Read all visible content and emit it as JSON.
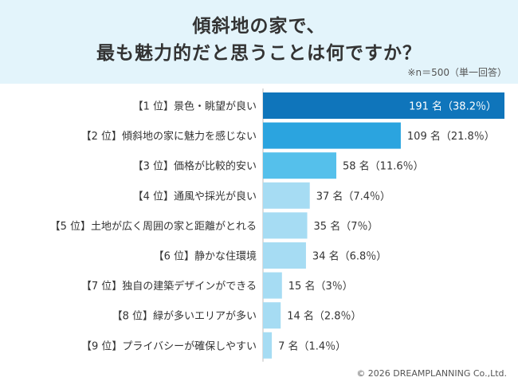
{
  "header": {
    "title_line1": "傾斜地の家で、",
    "title_line2": "最も魅力的だと思うことは何ですか？",
    "note": "※n＝500（単一回答）"
  },
  "chart_data": {
    "type": "bar",
    "orientation": "horizontal",
    "categories": [
      "【1 位】景色・眺望が良い",
      "【2 位】傾斜地の家に魅力を感じない",
      "【3 位】価格が比較的安い",
      "【4 位】通風や採光が良い",
      "【5 位】土地が広く周囲の家と距離がとれる",
      "【6 位】静かな住環境",
      "【7 位】独自の建築デザインができる",
      "【8 位】緑が多いエリアが多い",
      "【9 位】プライバシーが確保しやすい"
    ],
    "values": [
      191,
      109,
      58,
      37,
      35,
      34,
      15,
      14,
      7
    ],
    "value_labels": [
      "191 名（38.2％）",
      "109 名（21.8％）",
      "58 名（11.6％）",
      "37 名（7.4％）",
      "35 名（7％）",
      "34 名（6.8％）",
      "15 名（3％）",
      "14 名（2.8％）",
      "7 名（1.4％）"
    ],
    "colors": [
      "#0f75bb",
      "#2ba4df",
      "#55c0eb",
      "#a6dcf3",
      "#a6dcf3",
      "#a6dcf3",
      "#a6dcf3",
      "#a6dcf3",
      "#a6dcf3"
    ],
    "grid": false,
    "legend": "none"
  },
  "footer": {
    "copyright": "© 2026 DREAMPLANNING Co.,Ltd."
  }
}
